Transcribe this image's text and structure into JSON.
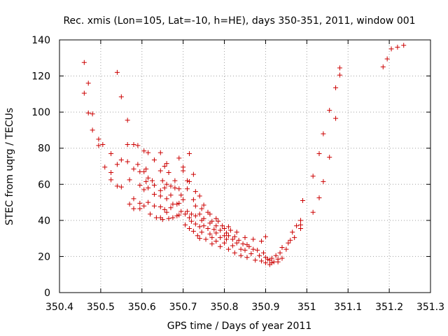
{
  "chart_data": {
    "type": "scatter",
    "title": "Rec. xmis (Lon=105, Lat=-10, h=HE), days 350-351, 2011, window 001",
    "xlabel": "GPS time / Days of year 2011",
    "ylabel": "STEC from uqrg / TECUs",
    "xlim": [
      350.4,
      351.3
    ],
    "ylim": [
      0,
      140
    ],
    "xticks": [
      "350.4",
      "350.5",
      "350.6",
      "350.7",
      "350.8",
      "350.9",
      "351",
      "351.1",
      "351.2",
      "351.3"
    ],
    "yticks": [
      "0",
      "20",
      "40",
      "60",
      "80",
      "100",
      "120",
      "140"
    ],
    "grid": true,
    "legend": "none",
    "marker": "plus",
    "color": "#cc0000",
    "points": [
      [
        350.46,
        127.5
      ],
      [
        350.46,
        110.5
      ],
      [
        350.47,
        116.0
      ],
      [
        350.47,
        99.5
      ],
      [
        350.48,
        99.0
      ],
      [
        350.48,
        90.0
      ],
      [
        350.495,
        85.0
      ],
      [
        350.495,
        81.5
      ],
      [
        350.505,
        82.0
      ],
      [
        350.51,
        69.5
      ],
      [
        350.525,
        77.0
      ],
      [
        350.525,
        66.5
      ],
      [
        350.525,
        62.5
      ],
      [
        350.54,
        122.0
      ],
      [
        350.54,
        71.0
      ],
      [
        350.54,
        59.0
      ],
      [
        350.55,
        108.5
      ],
      [
        350.55,
        73.5
      ],
      [
        350.55,
        58.5
      ],
      [
        350.565,
        95.5
      ],
      [
        350.565,
        82.0
      ],
      [
        350.565,
        72.5
      ],
      [
        350.57,
        62.5
      ],
      [
        350.57,
        49.0
      ],
      [
        350.58,
        82.0
      ],
      [
        350.58,
        68.5
      ],
      [
        350.58,
        52.0
      ],
      [
        350.58,
        46.5
      ],
      [
        350.59,
        81.5
      ],
      [
        350.59,
        71.0
      ],
      [
        350.595,
        67.0
      ],
      [
        350.595,
        59.5
      ],
      [
        350.595,
        49.5
      ],
      [
        350.595,
        46.5
      ],
      [
        350.605,
        78.5
      ],
      [
        350.605,
        67.0
      ],
      [
        350.605,
        57.0
      ],
      [
        350.605,
        48.0
      ],
      [
        350.61,
        68.5
      ],
      [
        350.61,
        61.5
      ],
      [
        350.615,
        77.5
      ],
      [
        350.615,
        63.5
      ],
      [
        350.615,
        58.0
      ],
      [
        350.615,
        50.0
      ],
      [
        350.62,
        43.5
      ],
      [
        350.625,
        62.0
      ],
      [
        350.63,
        73.5
      ],
      [
        350.63,
        59.5
      ],
      [
        350.63,
        54.5
      ],
      [
        350.63,
        48.0
      ],
      [
        350.635,
        41.5
      ],
      [
        350.645,
        77.5
      ],
      [
        350.645,
        67.5
      ],
      [
        350.645,
        56.5
      ],
      [
        350.645,
        53.5
      ],
      [
        350.645,
        47.5
      ],
      [
        350.645,
        41.5
      ],
      [
        350.65,
        62.0
      ],
      [
        350.65,
        40.5
      ],
      [
        350.655,
        70.0
      ],
      [
        350.655,
        58.0
      ],
      [
        350.655,
        46.0
      ],
      [
        350.66,
        71.5
      ],
      [
        350.66,
        60.0
      ],
      [
        350.66,
        52.0
      ],
      [
        350.66,
        44.5
      ],
      [
        350.665,
        66.5
      ],
      [
        350.665,
        41.0
      ],
      [
        350.67,
        59.0
      ],
      [
        350.67,
        54.0
      ],
      [
        350.67,
        47.0
      ],
      [
        350.675,
        49.0
      ],
      [
        350.675,
        41.5
      ],
      [
        350.68,
        62.0
      ],
      [
        350.68,
        58.0
      ],
      [
        350.685,
        49.0
      ],
      [
        350.685,
        42.5
      ],
      [
        350.69,
        74.5
      ],
      [
        350.69,
        57.5
      ],
      [
        350.69,
        49.5
      ],
      [
        350.69,
        43.0
      ],
      [
        350.695,
        54.0
      ],
      [
        350.695,
        45.0
      ],
      [
        350.7,
        69.5
      ],
      [
        350.7,
        67.5
      ],
      [
        350.7,
        51.5
      ],
      [
        350.705,
        43.5
      ],
      [
        350.705,
        37.5
      ],
      [
        350.71,
        62.0
      ],
      [
        350.71,
        57.5
      ],
      [
        350.71,
        45.0
      ],
      [
        350.715,
        77.0
      ],
      [
        350.715,
        61.5
      ],
      [
        350.715,
        41.5
      ],
      [
        350.715,
        35.5
      ],
      [
        350.72,
        43.5
      ],
      [
        350.72,
        39.5
      ],
      [
        350.725,
        65.5
      ],
      [
        350.725,
        51.5
      ],
      [
        350.725,
        34.0
      ],
      [
        350.73,
        56.0
      ],
      [
        350.73,
        48.0
      ],
      [
        350.73,
        42.5
      ],
      [
        350.73,
        38.0
      ],
      [
        350.735,
        31.5
      ],
      [
        350.74,
        53.5
      ],
      [
        350.74,
        43.5
      ],
      [
        350.74,
        36.5
      ],
      [
        350.74,
        30.0
      ],
      [
        350.745,
        46.5
      ],
      [
        350.745,
        40.0
      ],
      [
        350.745,
        33.5
      ],
      [
        350.75,
        48.5
      ],
      [
        350.75,
        41.0
      ],
      [
        350.75,
        37.0
      ],
      [
        350.755,
        29.5
      ],
      [
        350.76,
        44.5
      ],
      [
        350.76,
        35.5
      ],
      [
        350.765,
        43.5
      ],
      [
        350.765,
        38.5
      ],
      [
        350.765,
        32.5
      ],
      [
        350.77,
        39.5
      ],
      [
        350.77,
        30.5
      ],
      [
        350.77,
        27.0
      ],
      [
        350.775,
        35.0
      ],
      [
        350.78,
        41.0
      ],
      [
        350.78,
        37.0
      ],
      [
        350.78,
        33.0
      ],
      [
        350.78,
        28.5
      ],
      [
        350.785,
        39.5
      ],
      [
        350.79,
        34.5
      ],
      [
        350.79,
        30.5
      ],
      [
        350.79,
        25.5
      ],
      [
        350.795,
        37.0
      ],
      [
        350.8,
        35.5
      ],
      [
        350.8,
        31.5
      ],
      [
        350.8,
        27.5
      ],
      [
        350.805,
        33.0
      ],
      [
        350.805,
        29.5
      ],
      [
        350.81,
        36.5
      ],
      [
        350.81,
        31.5
      ],
      [
        350.81,
        24.0
      ],
      [
        350.815,
        34.5
      ],
      [
        350.82,
        29.5
      ],
      [
        350.82,
        26.0
      ],
      [
        350.825,
        31.0
      ],
      [
        350.825,
        22.0
      ],
      [
        350.83,
        33.5
      ],
      [
        350.83,
        27.5
      ],
      [
        350.835,
        29.0
      ],
      [
        350.84,
        24.0
      ],
      [
        350.84,
        20.5
      ],
      [
        350.845,
        27.0
      ],
      [
        350.85,
        30.5
      ],
      [
        350.85,
        23.5
      ],
      [
        350.855,
        26.5
      ],
      [
        350.855,
        19.5
      ],
      [
        350.86,
        25.5
      ],
      [
        350.865,
        21.5
      ],
      [
        350.87,
        29.5
      ],
      [
        350.87,
        24.0
      ],
      [
        350.875,
        18.0
      ],
      [
        350.88,
        23.5
      ],
      [
        350.885,
        20.5
      ],
      [
        350.89,
        28.5
      ],
      [
        350.89,
        17.5
      ],
      [
        350.895,
        22.0
      ],
      [
        350.9,
        31.0
      ],
      [
        350.9,
        19.5
      ],
      [
        350.9,
        16.5
      ],
      [
        350.905,
        18.5
      ],
      [
        350.91,
        18.0
      ],
      [
        350.91,
        15.5
      ],
      [
        350.915,
        16.5
      ],
      [
        350.915,
        19.0
      ],
      [
        350.92,
        17.0
      ],
      [
        350.925,
        20.5
      ],
      [
        350.93,
        18.5
      ],
      [
        350.93,
        17.0
      ],
      [
        350.935,
        22.0
      ],
      [
        350.94,
        25.0
      ],
      [
        350.94,
        19.0
      ],
      [
        350.95,
        24.0
      ],
      [
        350.955,
        27.5
      ],
      [
        350.96,
        29.0
      ],
      [
        350.965,
        33.5
      ],
      [
        350.97,
        30.5
      ],
      [
        350.975,
        37.0
      ],
      [
        350.985,
        40.0
      ],
      [
        350.985,
        37.5
      ],
      [
        350.985,
        35.5
      ],
      [
        350.99,
        51.0
      ],
      [
        351.015,
        44.5
      ],
      [
        351.015,
        64.5
      ],
      [
        351.03,
        52.5
      ],
      [
        351.03,
        77.0
      ],
      [
        351.04,
        61.5
      ],
      [
        351.04,
        88.0
      ],
      [
        351.055,
        101.0
      ],
      [
        351.055,
        75.0
      ],
      [
        351.07,
        96.5
      ],
      [
        351.07,
        113.5
      ],
      [
        351.08,
        120.5
      ],
      [
        351.08,
        124.5
      ],
      [
        351.185,
        125.0
      ],
      [
        351.195,
        129.5
      ],
      [
        351.205,
        135.0
      ],
      [
        351.22,
        136.0
      ],
      [
        351.235,
        137.0
      ]
    ]
  }
}
